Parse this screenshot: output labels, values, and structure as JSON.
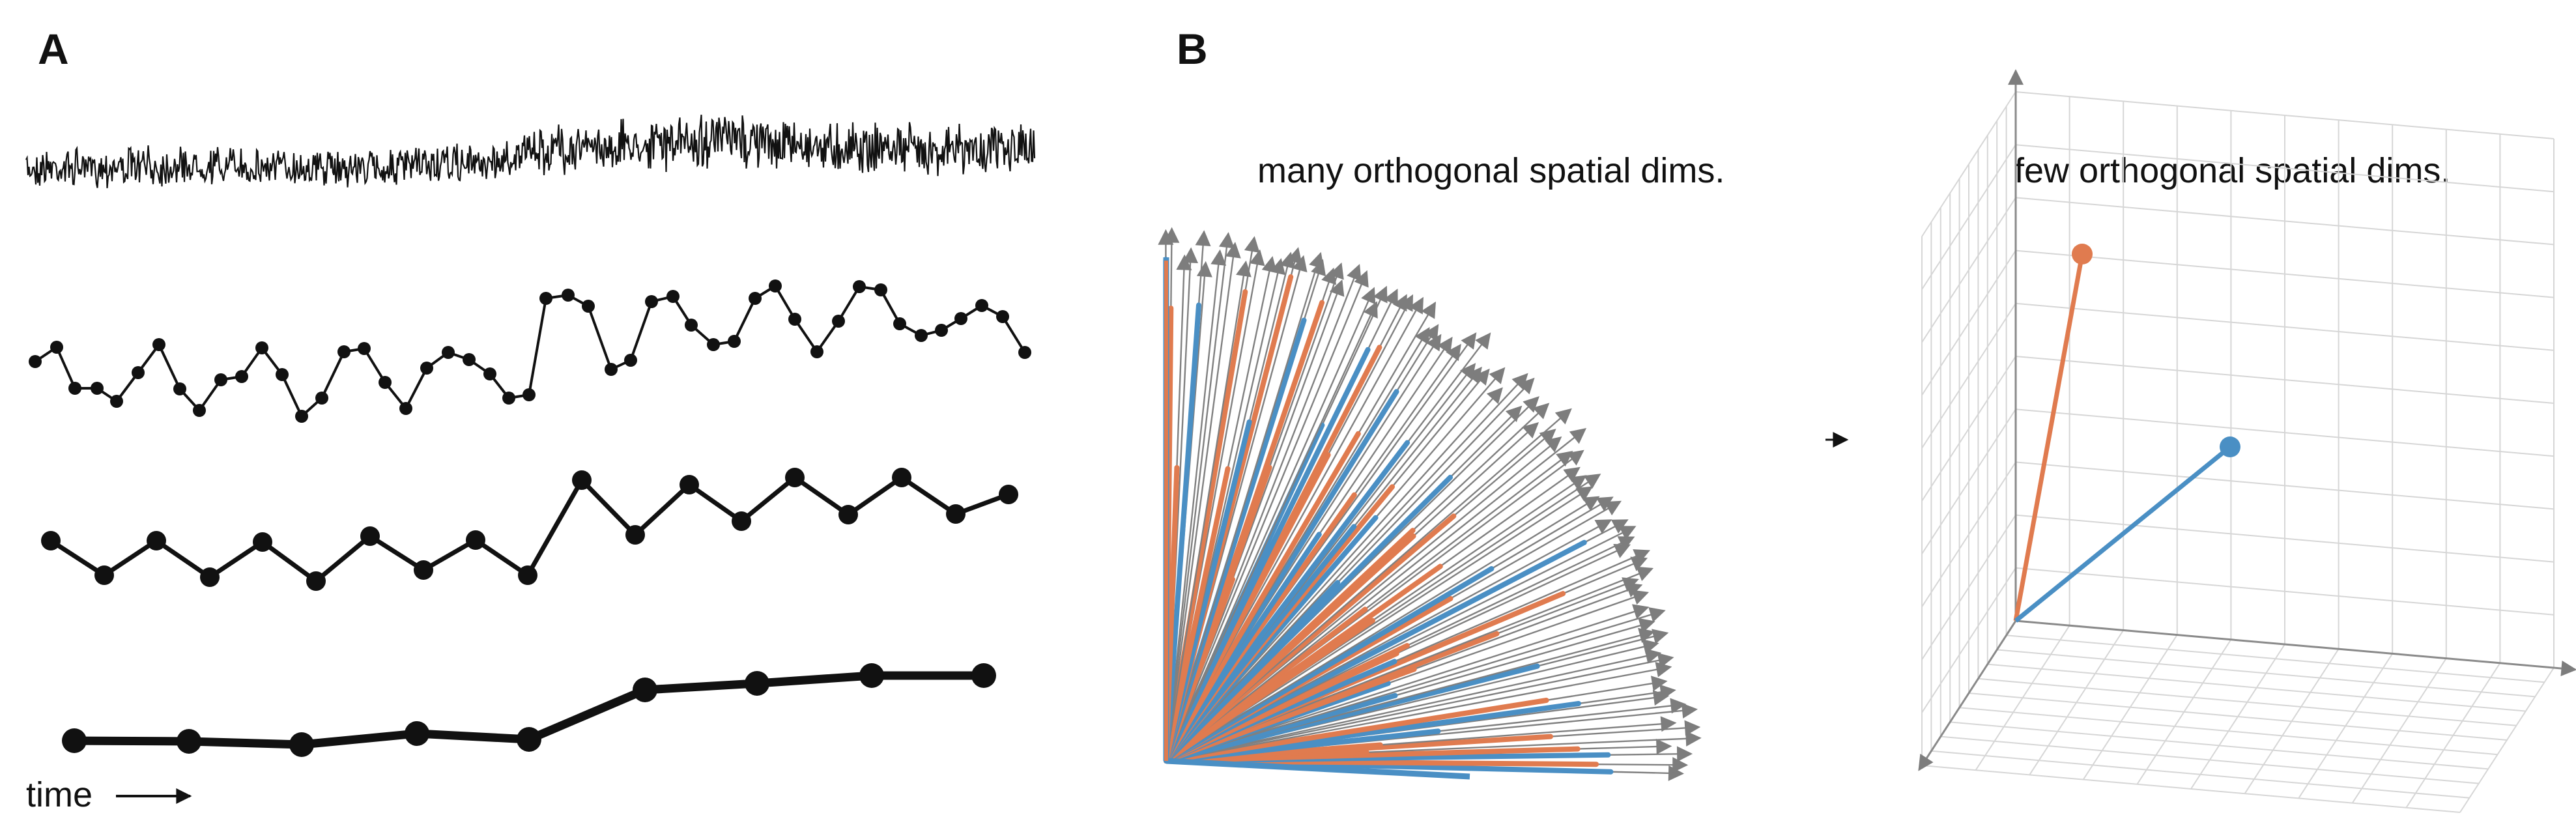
{
  "panels": {
    "a": {
      "label": "A",
      "time_label": "time"
    },
    "b": {
      "label": "B",
      "left_caption": "many orthogonal spatial dims.",
      "right_caption": "few orthogonal spatial dims."
    }
  },
  "colors": {
    "trace": "#111111",
    "arrow_gray": "#808080",
    "blue": "#4a8fc4",
    "orange": "#e07b4f",
    "grid": "#d6d6d6",
    "axis": "#8a8a8a"
  },
  "icons": {
    "time_arrow": "arrow-right-icon",
    "transition_arrow": "arrow-right-icon"
  }
}
